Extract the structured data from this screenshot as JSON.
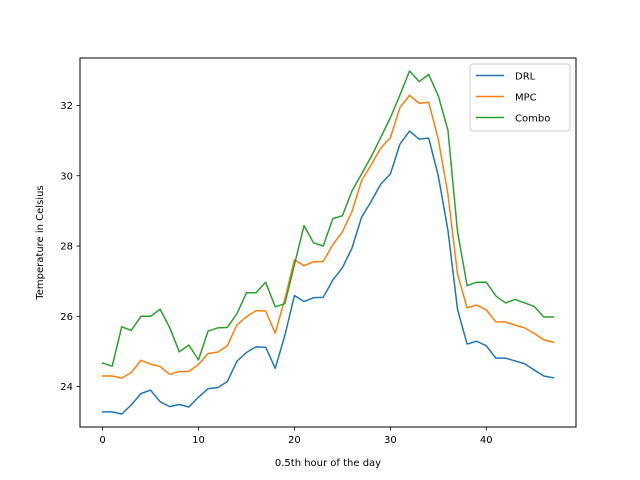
{
  "chart_data": {
    "type": "line",
    "title": "",
    "xlabel": "0.5th hour of the day",
    "ylabel": "Temperature in Celsius",
    "xlim": [
      -2.35,
      49.35
    ],
    "ylim": [
      22.85,
      33.35
    ],
    "xticks": [
      0,
      10,
      20,
      30,
      40
    ],
    "yticks": [
      24,
      26,
      28,
      30,
      32
    ],
    "grid": false,
    "legend": "upper-right",
    "x": [
      0,
      1,
      2,
      3,
      4,
      5,
      6,
      7,
      8,
      9,
      10,
      11,
      12,
      13,
      14,
      15,
      16,
      17,
      18,
      19,
      20,
      21,
      22,
      23,
      24,
      25,
      26,
      27,
      28,
      29,
      30,
      31,
      32,
      33,
      34,
      35,
      36,
      37,
      38,
      39,
      40,
      41,
      42,
      43,
      44,
      45,
      46,
      47
    ],
    "series": [
      {
        "name": "DRL",
        "color": "#1f77b4",
        "values": [
          23.28,
          23.28,
          23.22,
          23.48,
          23.8,
          23.9,
          23.57,
          23.43,
          23.49,
          23.42,
          23.7,
          23.94,
          23.97,
          24.14,
          24.72,
          24.97,
          25.13,
          25.12,
          24.52,
          25.45,
          26.59,
          26.42,
          26.53,
          26.54,
          27.03,
          27.38,
          27.94,
          28.82,
          29.27,
          29.76,
          30.05,
          30.9,
          31.27,
          31.04,
          31.07,
          29.99,
          28.45,
          26.2,
          25.21,
          25.29,
          25.16,
          24.81,
          24.81,
          24.73,
          24.65,
          24.47,
          24.3,
          24.25
        ]
      },
      {
        "name": "MPC",
        "color": "#ff7f0e",
        "values": [
          24.3,
          24.3,
          24.24,
          24.4,
          24.75,
          24.64,
          24.57,
          24.35,
          24.43,
          24.43,
          24.63,
          24.94,
          24.98,
          25.16,
          25.75,
          25.99,
          26.16,
          26.15,
          25.52,
          26.49,
          27.61,
          27.44,
          27.55,
          27.56,
          28.04,
          28.4,
          28.98,
          29.86,
          30.31,
          30.79,
          31.08,
          31.94,
          32.29,
          32.06,
          32.09,
          31.03,
          29.48,
          27.2,
          26.24,
          26.32,
          26.18,
          25.84,
          25.84,
          25.75,
          25.67,
          25.51,
          25.33,
          25.26
        ]
      },
      {
        "name": "Combo",
        "color": "#2ca02c",
        "values": [
          24.67,
          24.58,
          25.7,
          25.6,
          26.0,
          26.0,
          26.2,
          25.68,
          24.99,
          25.18,
          24.76,
          25.58,
          25.67,
          25.68,
          26.07,
          26.67,
          26.67,
          26.97,
          26.27,
          26.36,
          27.47,
          28.58,
          28.09,
          28.0,
          28.78,
          28.86,
          29.57,
          30.05,
          30.54,
          31.09,
          31.65,
          32.3,
          32.98,
          32.68,
          32.88,
          32.27,
          31.3,
          28.41,
          26.87,
          26.97,
          26.97,
          26.58,
          26.38,
          26.48,
          26.38,
          26.28,
          25.98,
          25.98
        ]
      }
    ]
  }
}
